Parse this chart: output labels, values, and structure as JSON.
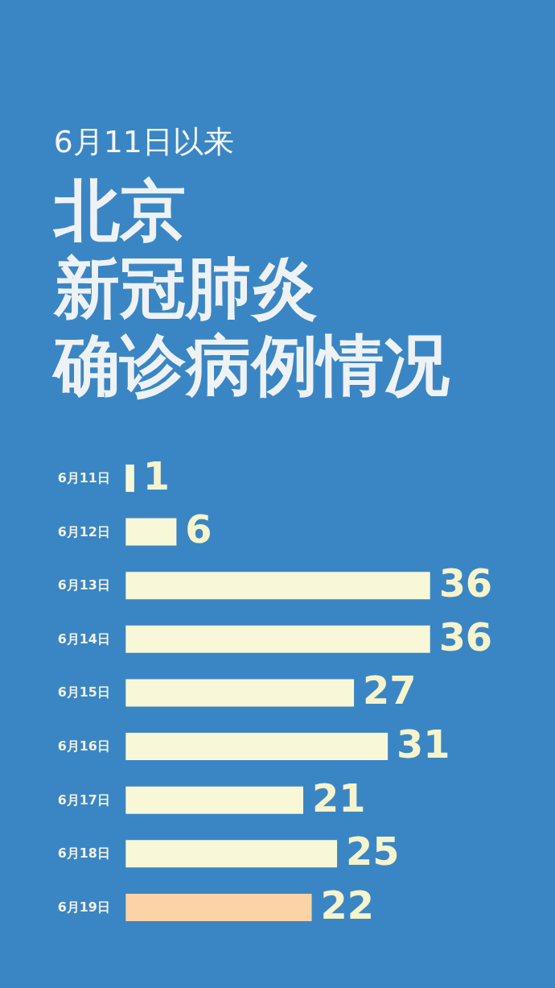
{
  "chart_data": {
    "type": "bar",
    "orientation": "horizontal",
    "subtitle": "6月11日以来",
    "title": "北京新冠肺炎确诊病例情况",
    "categories": [
      "6月11日",
      "6月12日",
      "6月13日",
      "6月14日",
      "6月15日",
      "6月16日",
      "6月17日",
      "6月18日",
      "6月19日"
    ],
    "values": [
      1,
      6,
      36,
      36,
      27,
      31,
      21,
      25,
      22
    ],
    "colors": [
      "#f8f8d8",
      "#f8f8d8",
      "#f8f8d8",
      "#f8f8d8",
      "#f8f8d8",
      "#f8f8d8",
      "#f8f8d8",
      "#f8f8d8",
      "#fbd3a6"
    ],
    "data_labels": true,
    "tick_labels": "y",
    "grid": false,
    "legend": false
  }
}
